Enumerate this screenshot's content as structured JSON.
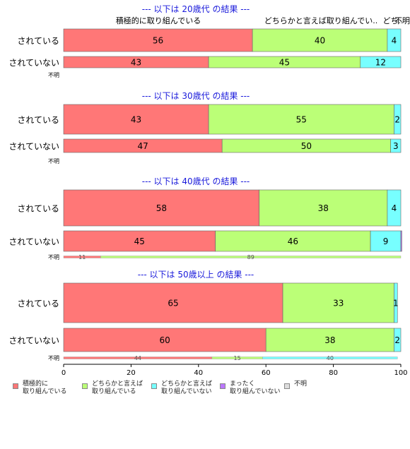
{
  "chart_data": {
    "type": "bar",
    "orientation": "horizontal",
    "stacked": true,
    "xlim": [
      0,
      100
    ],
    "xticks": [
      "0",
      "20",
      "40",
      "60",
      "80",
      "100"
    ],
    "colors": [
      "#ff7777",
      "#bbff77",
      "#77ffff",
      "#bb77ff",
      "#dddddd"
    ],
    "legend": [
      "積極的に\n取り組んでいる",
      "どちらかと言えば\n取り組んでいる",
      "どちらかと言えば\n取り組んでいない",
      "まったく\n取り組んでいない",
      "不明"
    ],
    "top_headers": [
      "積極的に取り組んでいる",
      "どちらかと言えば取り組んでい..",
      "どち..",
      "不明"
    ],
    "panels": [
      {
        "title": "--- 以下は 20歳代 の結果 ---",
        "rows": [
          {
            "label": "されている",
            "values": [
              56,
              40,
              4,
              0,
              0
            ],
            "labels": [
              "56",
              "40",
              "4",
              "",
              ""
            ]
          },
          {
            "label": "されていない",
            "values": [
              43,
              45,
              12,
              0,
              0
            ],
            "labels": [
              "43",
              "45",
              "12",
              "",
              ""
            ]
          }
        ],
        "unknown": {
          "label": "不明",
          "values": [
            0,
            0,
            0,
            0,
            0
          ],
          "labels": [
            "",
            "",
            "",
            "",
            ""
          ]
        }
      },
      {
        "title": "--- 以下は 30歳代 の結果 ---",
        "rows": [
          {
            "label": "されている",
            "values": [
              43,
              55,
              2,
              0,
              0
            ],
            "labels": [
              "43",
              "55",
              "2",
              "",
              ""
            ]
          },
          {
            "label": "されていない",
            "values": [
              47,
              50,
              3,
              0,
              0
            ],
            "labels": [
              "47",
              "50",
              "3",
              "",
              ""
            ]
          }
        ],
        "unknown": {
          "label": "不明",
          "values": [
            0,
            0,
            0,
            0,
            0
          ],
          "labels": [
            "",
            "",
            "",
            "",
            ""
          ]
        }
      },
      {
        "title": "--- 以下は 40歳代 の結果 ---",
        "rows": [
          {
            "label": "されている",
            "values": [
              58,
              38,
              4,
              0,
              0
            ],
            "labels": [
              "58",
              "38",
              "4",
              "",
              ""
            ]
          },
          {
            "label": "されていない",
            "values": [
              45,
              46,
              9,
              0.3,
              0
            ],
            "labels": [
              "45",
              "46",
              "9",
              "",
              ""
            ]
          }
        ],
        "unknown": {
          "label": "不明",
          "values": [
            11,
            89,
            0,
            0,
            0
          ],
          "labels": [
            "11",
            "89",
            "",
            "",
            ""
          ]
        }
      },
      {
        "title": "--- 以下は 50歳以上 の結果 ---",
        "rows": [
          {
            "label": "されている",
            "values": [
              65,
              33,
              1,
              0,
              0
            ],
            "labels": [
              "65",
              "33",
              "1",
              "",
              ""
            ]
          },
          {
            "label": "されていない",
            "values": [
              60,
              38,
              2,
              0,
              0
            ],
            "labels": [
              "60",
              "38",
              "2",
              "",
              ""
            ]
          }
        ],
        "unknown": {
          "label": "不明",
          "values": [
            44,
            15,
            40,
            0,
            0
          ],
          "labels": [
            "44",
            "15",
            "40",
            "",
            ""
          ]
        }
      }
    ]
  }
}
